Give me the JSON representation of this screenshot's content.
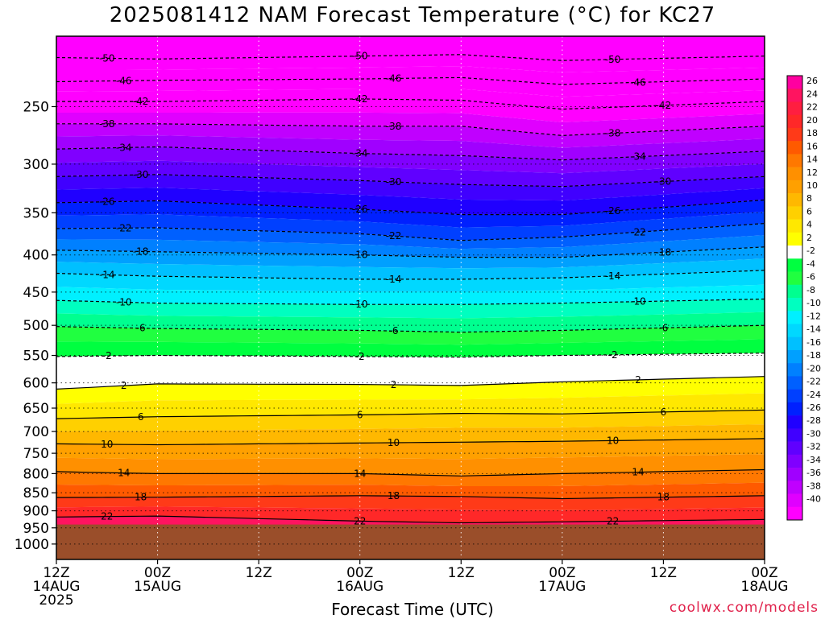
{
  "chart_data": {
    "type": "heatmap",
    "title": "2025081412 NAM Forecast Temperature (°C) for KC27",
    "xlabel": "Forecast Time (UTC)",
    "credit": "coolwx.com/models",
    "x_ticks": [
      {
        "l1": "12Z",
        "l2": "14AUG",
        "l3": "2025"
      },
      {
        "l1": "00Z",
        "l2": "15AUG",
        "l3": ""
      },
      {
        "l1": "12Z",
        "l2": "",
        "l3": ""
      },
      {
        "l1": "00Z",
        "l2": "16AUG",
        "l3": ""
      },
      {
        "l1": "12Z",
        "l2": "",
        "l3": ""
      },
      {
        "l1": "00Z",
        "l2": "17AUG",
        "l3": ""
      },
      {
        "l1": "12Z",
        "l2": "",
        "l3": ""
      },
      {
        "l1": "00Z",
        "l2": "18AUG",
        "l3": ""
      }
    ],
    "x_range_hours": [
      0,
      84
    ],
    "ylabel": "",
    "y_axis": "pressure (hPa, log scale, reversed)",
    "y_ticks": [
      250,
      300,
      350,
      400,
      450,
      500,
      550,
      600,
      650,
      700,
      750,
      800,
      850,
      900,
      950,
      1000
    ],
    "y_range": [
      200,
      1050
    ],
    "surface_pressure_hpa": 940,
    "grid": "dotted",
    "colorbar": {
      "ticks": [
        26,
        24,
        22,
        20,
        18,
        16,
        14,
        12,
        10,
        8,
        6,
        4,
        2,
        -2,
        -4,
        -6,
        -8,
        -10,
        -12,
        -14,
        -16,
        -18,
        -20,
        -22,
        -24,
        -26,
        -28,
        -30,
        -32,
        -34,
        -36,
        -38,
        -40
      ],
      "colors": [
        "#ff00a0",
        "#ff1460",
        "#ff1e40",
        "#ff2828",
        "#ff3a18",
        "#ff5a00",
        "#ff7800",
        "#ff9000",
        "#ffa000",
        "#ffb800",
        "#ffd000",
        "#ffe800",
        "#ffff00",
        "#ffffff",
        "#00ff40",
        "#20ff40",
        "#00ff90",
        "#00ffc0",
        "#00f0ff",
        "#00d8ff",
        "#00c0ff",
        "#00a0ff",
        "#0080ff",
        "#0060ff",
        "#0040ff",
        "#0020ff",
        "#2000ff",
        "#4000ff",
        "#6000ff",
        "#8000ff",
        "#a000ff",
        "#c000ff",
        "#e000ff",
        "#ff00ff"
      ]
    },
    "series": [
      {
        "name": "-50",
        "values": [
          [
            0,
            214
          ],
          [
            12,
            215
          ],
          [
            36,
            213
          ],
          [
            48,
            212
          ],
          [
            60,
            216
          ],
          [
            84,
            213
          ]
        ]
      },
      {
        "name": "-46",
        "values": [
          [
            0,
            231
          ],
          [
            12,
            230
          ],
          [
            36,
            229
          ],
          [
            48,
            228
          ],
          [
            60,
            233
          ],
          [
            84,
            229
          ]
        ]
      },
      {
        "name": "-42",
        "values": [
          [
            0,
            246
          ],
          [
            12,
            246
          ],
          [
            36,
            244
          ],
          [
            48,
            245
          ],
          [
            60,
            252
          ],
          [
            84,
            246
          ]
        ]
      },
      {
        "name": "-38",
        "values": [
          [
            0,
            264
          ],
          [
            12,
            264
          ],
          [
            36,
            266
          ],
          [
            48,
            266
          ],
          [
            60,
            274
          ],
          [
            84,
            266
          ]
        ]
      },
      {
        "name": "-34",
        "values": [
          [
            0,
            286
          ],
          [
            12,
            284
          ],
          [
            36,
            290
          ],
          [
            48,
            292
          ],
          [
            60,
            296
          ],
          [
            84,
            288
          ]
        ]
      },
      {
        "name": "-30",
        "values": [
          [
            0,
            312
          ],
          [
            12,
            310
          ],
          [
            36,
            316
          ],
          [
            48,
            320
          ],
          [
            60,
            322
          ],
          [
            84,
            312
          ]
        ]
      },
      {
        "name": "-26",
        "values": [
          [
            0,
            339
          ],
          [
            12,
            337
          ],
          [
            36,
            346
          ],
          [
            48,
            352
          ],
          [
            60,
            352
          ],
          [
            84,
            336
          ]
        ]
      },
      {
        "name": "-22",
        "values": [
          [
            0,
            368
          ],
          [
            12,
            367
          ],
          [
            36,
            374
          ],
          [
            48,
            382
          ],
          [
            60,
            378
          ],
          [
            84,
            362
          ]
        ]
      },
      {
        "name": "-18",
        "values": [
          [
            0,
            394
          ],
          [
            12,
            396
          ],
          [
            36,
            400
          ],
          [
            48,
            403
          ],
          [
            60,
            403
          ],
          [
            84,
            390
          ]
        ]
      },
      {
        "name": "-14",
        "values": [
          [
            0,
            424
          ],
          [
            12,
            428
          ],
          [
            36,
            432
          ],
          [
            48,
            432
          ],
          [
            60,
            430
          ],
          [
            84,
            420
          ]
        ]
      },
      {
        "name": "-10",
        "values": [
          [
            0,
            462
          ],
          [
            12,
            466
          ],
          [
            36,
            468
          ],
          [
            48,
            468
          ],
          [
            60,
            466
          ],
          [
            84,
            460
          ]
        ]
      },
      {
        "name": "-6",
        "values": [
          [
            0,
            502
          ],
          [
            12,
            505
          ],
          [
            36,
            508
          ],
          [
            48,
            511
          ],
          [
            60,
            508
          ],
          [
            84,
            500
          ]
        ]
      },
      {
        "name": "-2",
        "values": [
          [
            0,
            552
          ],
          [
            12,
            550
          ],
          [
            36,
            552
          ],
          [
            48,
            553
          ],
          [
            60,
            550
          ],
          [
            84,
            546
          ]
        ]
      },
      {
        "name": "2",
        "values": [
          [
            0,
            612
          ],
          [
            12,
            602
          ],
          [
            36,
            603
          ],
          [
            48,
            605
          ],
          [
            60,
            598
          ],
          [
            84,
            588
          ]
        ]
      },
      {
        "name": "6",
        "values": [
          [
            0,
            672
          ],
          [
            12,
            668
          ],
          [
            36,
            664
          ],
          [
            48,
            661
          ],
          [
            60,
            662
          ],
          [
            84,
            654
          ]
        ]
      },
      {
        "name": "10",
        "values": [
          [
            0,
            728
          ],
          [
            12,
            730
          ],
          [
            36,
            726
          ],
          [
            48,
            724
          ],
          [
            60,
            722
          ],
          [
            84,
            716
          ]
        ]
      },
      {
        "name": "14",
        "values": [
          [
            0,
            795
          ],
          [
            12,
            800
          ],
          [
            36,
            800
          ],
          [
            48,
            806
          ],
          [
            60,
            800
          ],
          [
            84,
            790
          ]
        ]
      },
      {
        "name": "18",
        "values": [
          [
            0,
            863
          ],
          [
            12,
            862
          ],
          [
            36,
            858
          ],
          [
            48,
            860
          ],
          [
            60,
            866
          ],
          [
            84,
            858
          ]
        ]
      },
      {
        "name": "22",
        "values": [
          [
            0,
            918
          ],
          [
            12,
            915
          ],
          [
            36,
            930
          ],
          [
            48,
            935
          ],
          [
            60,
            932
          ],
          [
            84,
            925
          ]
        ]
      }
    ]
  }
}
